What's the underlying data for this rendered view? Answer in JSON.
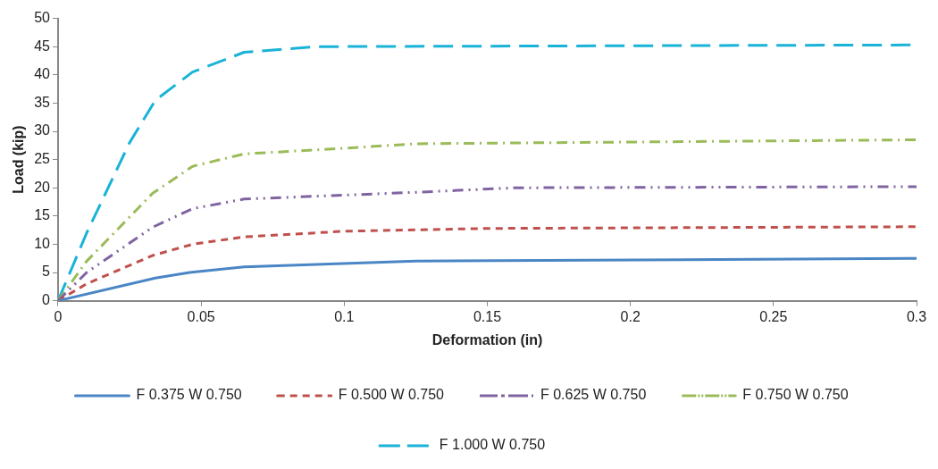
{
  "chart_data": {
    "type": "line",
    "xlabel": "Deformation (in)",
    "ylabel": "Load (kip)",
    "xlim": [
      0,
      0.3
    ],
    "xticks": [
      0,
      0.05,
      0.1,
      0.15,
      0.2,
      0.25,
      0.3
    ],
    "ylim": [
      0,
      50
    ],
    "yticks": [
      0,
      5,
      10,
      15,
      20,
      25,
      30,
      35,
      40,
      45,
      50
    ],
    "grid": false,
    "legend": "bottom",
    "marker": "none",
    "series": [
      {
        "name": "F 0.375 W 0.750",
        "color": "#4a86c5",
        "line_style": "solid",
        "x": [
          0,
          0.034,
          0.046,
          0.065,
          0.125,
          0.3
        ],
        "values": [
          0,
          4,
          5,
          6,
          7,
          7.5
        ]
      },
      {
        "name": "F 0.500 W 0.750",
        "color": "#c0504d",
        "line_style": "dashed",
        "x": [
          0,
          0.01,
          0.033,
          0.047,
          0.065,
          0.1,
          0.15,
          0.3
        ],
        "values": [
          0,
          3,
          8,
          10,
          11.3,
          12.3,
          12.8,
          13.1
        ]
      },
      {
        "name": "F 0.625 W 0.750",
        "color": "#8064a2",
        "line_style": "dashdotdot",
        "x": [
          0,
          0.01,
          0.033,
          0.047,
          0.065,
          0.1,
          0.125,
          0.16,
          0.3
        ],
        "values": [
          0,
          5,
          13,
          16.3,
          18,
          18.7,
          19.2,
          20,
          20.2
        ]
      },
      {
        "name": "F 0.750 W 0.750",
        "color": "#9bbb59",
        "line_style": "dashdot",
        "x": [
          0,
          0.01,
          0.033,
          0.047,
          0.065,
          0.1,
          0.125,
          0.3
        ],
        "values": [
          0,
          7,
          19,
          23.8,
          26,
          27,
          27.8,
          28.5
        ]
      },
      {
        "name": "F 1.000 W 0.750",
        "color": "#1ab3d8",
        "line_style": "longdash",
        "x": [
          0,
          0.01,
          0.025,
          0.034,
          0.047,
          0.065,
          0.09,
          0.3
        ],
        "values": [
          0,
          12,
          28,
          35.5,
          40.5,
          44,
          45,
          45.3
        ]
      }
    ]
  }
}
